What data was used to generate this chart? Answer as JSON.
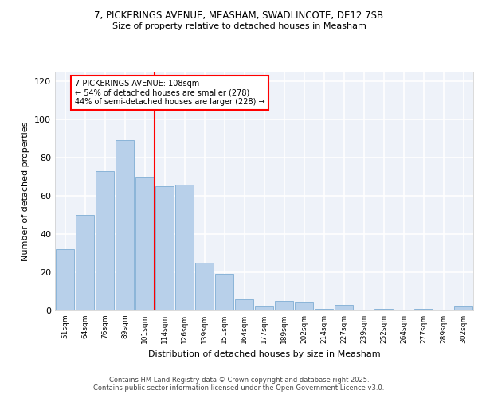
{
  "title_line1": "7, PICKERINGS AVENUE, MEASHAM, SWADLINCOTE, DE12 7SB",
  "title_line2": "Size of property relative to detached houses in Measham",
  "xlabel": "Distribution of detached houses by size in Measham",
  "ylabel": "Number of detached properties",
  "bar_labels": [
    "51sqm",
    "64sqm",
    "76sqm",
    "89sqm",
    "101sqm",
    "114sqm",
    "126sqm",
    "139sqm",
    "151sqm",
    "164sqm",
    "177sqm",
    "189sqm",
    "202sqm",
    "214sqm",
    "227sqm",
    "239sqm",
    "252sqm",
    "264sqm",
    "277sqm",
    "289sqm",
    "302sqm"
  ],
  "bar_values": [
    32,
    50,
    73,
    89,
    70,
    65,
    66,
    25,
    19,
    6,
    2,
    5,
    4,
    1,
    3,
    0,
    1,
    0,
    1,
    0,
    2
  ],
  "bar_color": "#b8d0ea",
  "bar_edge_color": "#8ab4d8",
  "vline_color": "red",
  "annotation_text": "7 PICKERINGS AVENUE: 108sqm\n← 54% of detached houses are smaller (278)\n44% of semi-detached houses are larger (228) →",
  "annotation_box_color": "white",
  "annotation_box_edge": "red",
  "ylim": [
    0,
    125
  ],
  "yticks": [
    0,
    20,
    40,
    60,
    80,
    100,
    120
  ],
  "bg_color": "#eef2f9",
  "grid_color": "white",
  "footer_line1": "Contains HM Land Registry data © Crown copyright and database right 2025.",
  "footer_line2": "Contains public sector information licensed under the Open Government Licence v3.0."
}
